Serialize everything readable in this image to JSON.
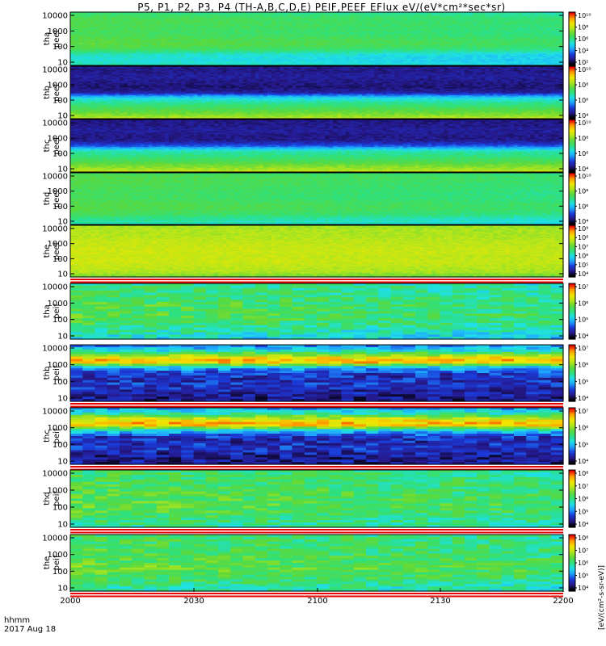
{
  "chart_data": {
    "type": "heatmap",
    "title": "P5, P1, P2, P3, P4 (TH-A,B,C,D,E) PEIF,PEEF EFlux eV/(eV*cm²*sec*sr)",
    "xtick_labels": [
      "2000",
      "2030",
      "2100",
      "2130",
      "2200"
    ],
    "x_domain": [
      "2000",
      "2200"
    ],
    "x_label_lines": [
      "hhmm",
      "2017 Aug 18"
    ],
    "colorbar_unit": "[eV/(cm²-s-sr-eV)]",
    "colormap": "rainbow",
    "palette": [
      "#000000",
      "#26198c",
      "#1a3bd9",
      "#1fa3ff",
      "#1fe0e6",
      "#2fe07a",
      "#5fd93a",
      "#b8e61a",
      "#f2e600",
      "#ff9a00",
      "#e60000"
    ],
    "flag_colors": [
      "#e60000",
      "#ffffff"
    ],
    "panels": [
      {
        "line1": "tha",
        "line2": "peef",
        "ytick_labels": [
          "10",
          "100",
          "1000",
          "10000"
        ],
        "cbar_ticks": [
          "10²",
          "10⁴",
          "10⁶",
          "10⁸",
          "10¹⁰"
        ],
        "profile": [
          0.45,
          0.42,
          0.44,
          0.55,
          0.6,
          0.58,
          0.55,
          0.56,
          0.57,
          0.56,
          0.5
        ],
        "time_fade": 0.06,
        "blocky": 0,
        "flag": false
      },
      {
        "line1": "thb",
        "line2": "peef",
        "ytick_labels": [
          "10",
          "100",
          "1000",
          "10000"
        ],
        "cbar_ticks": [
          "10⁴",
          "10⁶",
          "10⁸",
          "10¹⁰"
        ],
        "profile": [
          0.7,
          0.62,
          0.55,
          0.48,
          0.38,
          0.12,
          0.08,
          0.1,
          0.12,
          0.1,
          0.1
        ],
        "time_fade": 0.0,
        "blocky": 0,
        "flag": false
      },
      {
        "line1": "thc",
        "line2": "peef",
        "ytick_labels": [
          "10",
          "100",
          "1000",
          "10000"
        ],
        "cbar_ticks": [
          "10⁴",
          "10⁶",
          "10⁸",
          "10¹⁰"
        ],
        "profile": [
          0.72,
          0.64,
          0.56,
          0.5,
          0.45,
          0.22,
          0.1,
          0.1,
          0.12,
          0.1,
          0.1
        ],
        "time_fade": 0.0,
        "blocky": 0,
        "flag": false
      },
      {
        "line1": "thd",
        "line2": "peef",
        "ytick_labels": [
          "10",
          "100",
          "1000",
          "10000"
        ],
        "cbar_ticks": [
          "10⁴",
          "10⁶",
          "10⁸",
          "10¹⁰"
        ],
        "profile": [
          0.46,
          0.48,
          0.55,
          0.58,
          0.58,
          0.55,
          0.55,
          0.56,
          0.57,
          0.58,
          0.55
        ],
        "time_fade": 0.06,
        "blocky": 0,
        "flag": false
      },
      {
        "line1": "the",
        "line2": "peef",
        "ytick_labels": [
          "10",
          "100",
          "1000",
          "10000"
        ],
        "cbar_ticks": [
          "10⁴",
          "10⁵",
          "10⁶",
          "10⁷",
          "10⁸",
          "10⁹"
        ],
        "profile": [
          0.62,
          0.7,
          0.72,
          0.74,
          0.73,
          0.74,
          0.73,
          0.72,
          0.7,
          0.7,
          0.68
        ],
        "time_fade": 0.02,
        "blocky": 0,
        "flag": true
      },
      {
        "line1": "tha",
        "line2": "peif",
        "ytick_labels": [
          "10",
          "100",
          "1000",
          "10000"
        ],
        "cbar_ticks": [
          "10⁴",
          "10⁵",
          "10⁶",
          "10⁷"
        ],
        "profile": [
          0.4,
          0.45,
          0.5,
          0.55,
          0.58,
          0.56,
          0.57,
          0.55,
          0.52,
          0.52,
          0.5
        ],
        "time_fade": 0.06,
        "blocky": 1,
        "flag": false
      },
      {
        "line1": "thb",
        "line2": "peif",
        "ytick_labels": [
          "10",
          "100",
          "1000",
          "10000"
        ],
        "cbar_ticks": [
          "10⁴",
          "10⁵",
          "10⁶",
          "10⁷"
        ],
        "profile": [
          0.1,
          0.12,
          0.15,
          0.18,
          0.16,
          0.18,
          0.35,
          0.9,
          0.72,
          0.4,
          0.25
        ],
        "time_fade": 0.0,
        "blocky": 1,
        "flag": true
      },
      {
        "line1": "thc",
        "line2": "peif",
        "ytick_labels": [
          "10",
          "100",
          "1000",
          "10000"
        ],
        "cbar_ticks": [
          "10⁴",
          "10⁵",
          "10⁶",
          "10⁷"
        ],
        "profile": [
          0.12,
          0.1,
          0.14,
          0.18,
          0.15,
          0.18,
          0.4,
          0.88,
          0.75,
          0.45,
          0.3
        ],
        "time_fade": 0.0,
        "blocky": 1,
        "flag": true
      },
      {
        "line1": "thd",
        "line2": "peif",
        "ytick_labels": [
          "10",
          "100",
          "1000",
          "10000"
        ],
        "cbar_ticks": [
          "10⁴",
          "10⁵",
          "10⁶",
          "10⁷",
          "10⁸"
        ],
        "profile": [
          0.48,
          0.52,
          0.55,
          0.58,
          0.6,
          0.58,
          0.57,
          0.56,
          0.55,
          0.54,
          0.52
        ],
        "time_fade": 0.05,
        "blocky": 1,
        "flag": true
      },
      {
        "line1": "the",
        "line2": "peif",
        "ytick_labels": [
          "10",
          "100",
          "1000",
          "10000"
        ],
        "cbar_ticks": [
          "10⁴",
          "10⁵",
          "10⁶",
          "10⁷",
          "10⁸"
        ],
        "profile": [
          0.46,
          0.5,
          0.55,
          0.58,
          0.6,
          0.58,
          0.57,
          0.56,
          0.55,
          0.54,
          0.52
        ],
        "time_fade": 0.05,
        "blocky": 1,
        "flag": true
      }
    ]
  }
}
